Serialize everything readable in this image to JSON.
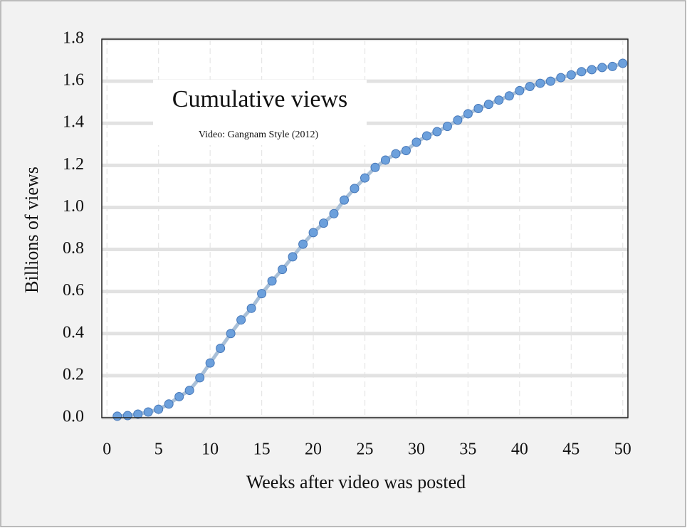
{
  "chart_data": {
    "type": "line",
    "title": "Cumulative views",
    "subtitle": "Video: Gangnam Style (2012)",
    "x_label": "Weeks after video was posted",
    "y_label": "Billions of views",
    "x": [
      1,
      2,
      3,
      4,
      5,
      6,
      7,
      8,
      9,
      10,
      11,
      12,
      13,
      14,
      15,
      16,
      17,
      18,
      19,
      20,
      21,
      22,
      23,
      24,
      25,
      26,
      27,
      28,
      29,
      30,
      31,
      32,
      33,
      34,
      35,
      36,
      37,
      38,
      39,
      40,
      41,
      42,
      43,
      44,
      45,
      46,
      47,
      48,
      49,
      50
    ],
    "series": [
      {
        "color": "#6ca0dc",
        "line_color": "#a9c0d8",
        "values": [
          0.007,
          0.01,
          0.017,
          0.027,
          0.04,
          0.065,
          0.1,
          0.13,
          0.19,
          0.26,
          0.33,
          0.4,
          0.465,
          0.52,
          0.59,
          0.65,
          0.705,
          0.765,
          0.825,
          0.88,
          0.925,
          0.97,
          1.035,
          1.09,
          1.14,
          1.19,
          1.225,
          1.255,
          1.27,
          1.31,
          1.34,
          1.36,
          1.385,
          1.415,
          1.445,
          1.47,
          1.49,
          1.51,
          1.53,
          1.555,
          1.575,
          1.59,
          1.6,
          1.617,
          1.63,
          1.645,
          1.655,
          1.665,
          1.67,
          1.685
        ]
      }
    ],
    "xlim": [
      -0.5,
      50.5
    ],
    "xticks": [
      0,
      5,
      10,
      15,
      20,
      25,
      30,
      35,
      40,
      45,
      50
    ],
    "ylim": [
      0,
      1.8
    ],
    "yticks": [
      {
        "value": 0,
        "label": "0.0"
      },
      0.2,
      0.4,
      0.6,
      0.8,
      {
        "value": 1,
        "label": "1.0"
      },
      1.2,
      1.4,
      1.6,
      1.8
    ],
    "grid": true
  }
}
